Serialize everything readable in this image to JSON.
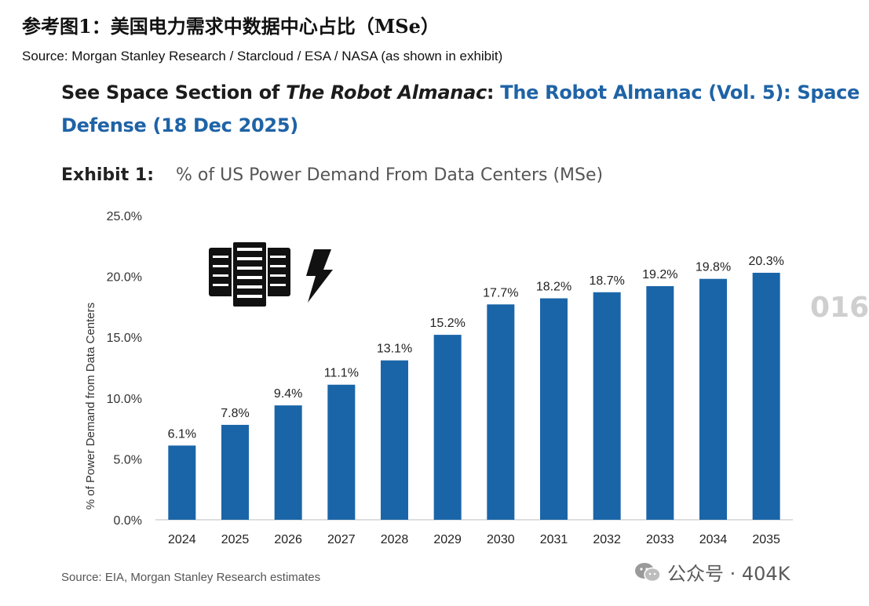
{
  "header": {
    "cn_title": "参考图1：美国电力需求中数据中心占比（MSe）",
    "source_line": "Source: Morgan Stanley Research / Starcloud / ESA / NASA (as shown in exhibit)"
  },
  "panel": {
    "see_prefix": "See Space Section of ",
    "see_italic": "The Robot Almanac",
    "see_colon": ":",
    "see_link_1": " The Robot Almanac (Vol. 5): Space",
    "see_link_2": "Defense (18 Dec 2025)",
    "exhibit_label": "Exhibit 1:",
    "footer_source": "Source: EIA, Morgan Stanley Research estimates"
  },
  "watermark": {
    "text": "公众号 · 404K",
    "edge_fragment": "016"
  },
  "colors": {
    "bar": "#1a65a8",
    "link": "#1f63a6"
  },
  "icons": [
    "server-rack-icon",
    "lightning-bolt-icon",
    "wechat-logo-icon"
  ],
  "chart_data": {
    "type": "bar",
    "title": "% of US Power Demand From Data Centers (MSe)",
    "xlabel": "",
    "ylabel": "% of Power Demand from Data Centers",
    "categories": [
      "2024",
      "2025",
      "2026",
      "2027",
      "2028",
      "2029",
      "2030",
      "2031",
      "2032",
      "2033",
      "2034",
      "2035"
    ],
    "values": [
      6.1,
      7.8,
      9.4,
      11.1,
      13.1,
      15.2,
      17.7,
      18.2,
      18.7,
      19.2,
      19.8,
      20.3
    ],
    "value_labels": [
      "6.1%",
      "7.8%",
      "9.4%",
      "11.1%",
      "13.1%",
      "15.2%",
      "17.7%",
      "18.2%",
      "18.7%",
      "19.2%",
      "19.8%",
      "20.3%"
    ],
    "yticks": [
      0,
      5,
      10,
      15,
      20,
      25
    ],
    "ytick_labels": [
      "0.0%",
      "5.0%",
      "10.0%",
      "15.0%",
      "20.0%",
      "25.0%"
    ],
    "ylim": [
      0,
      25
    ],
    "grid": false,
    "legend": "none"
  }
}
